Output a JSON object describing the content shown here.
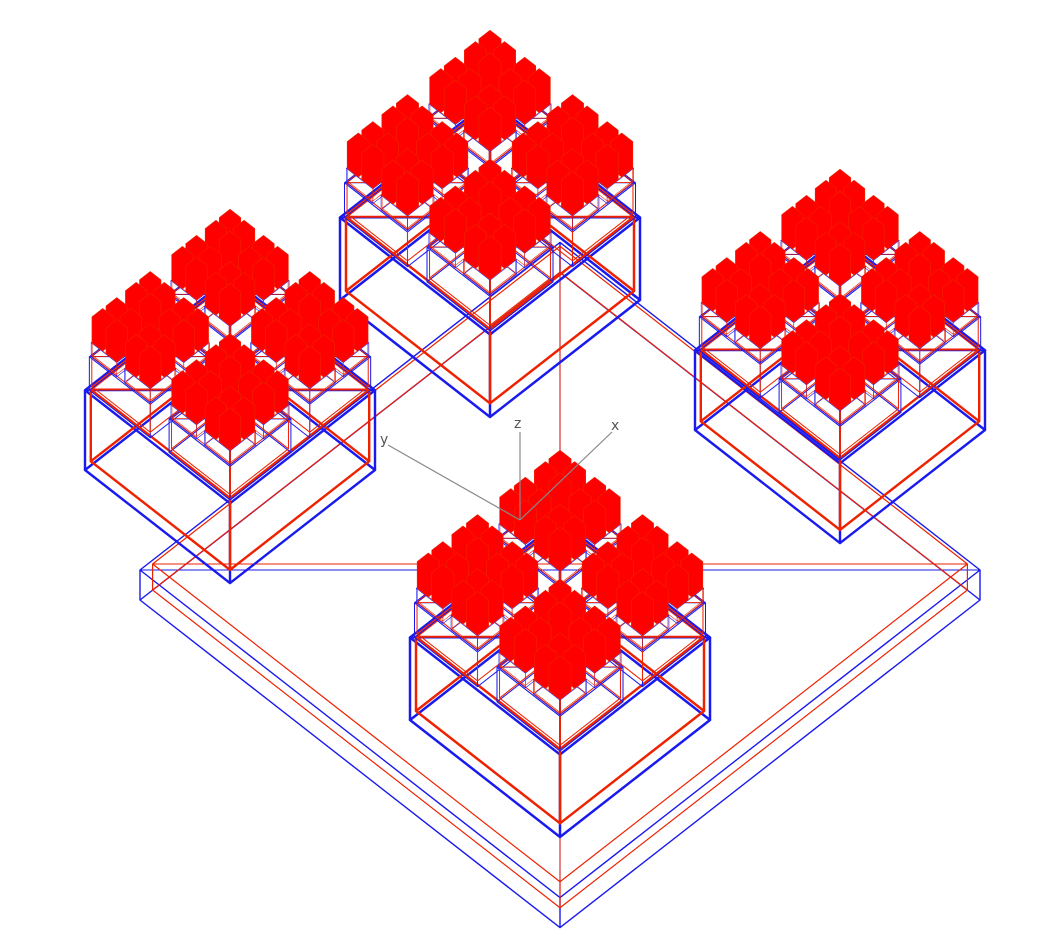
{
  "viewer": {
    "background": "#ffffff",
    "colors": {
      "red": "#ee2200",
      "blue": "#1a1aee",
      "red_fill": "#ff0000",
      "axis": "#888888"
    },
    "axes": {
      "x_label": "x",
      "y_label": "y",
      "z_label": "z"
    },
    "fractal": {
      "levels": 4,
      "branching": 4
    }
  }
}
